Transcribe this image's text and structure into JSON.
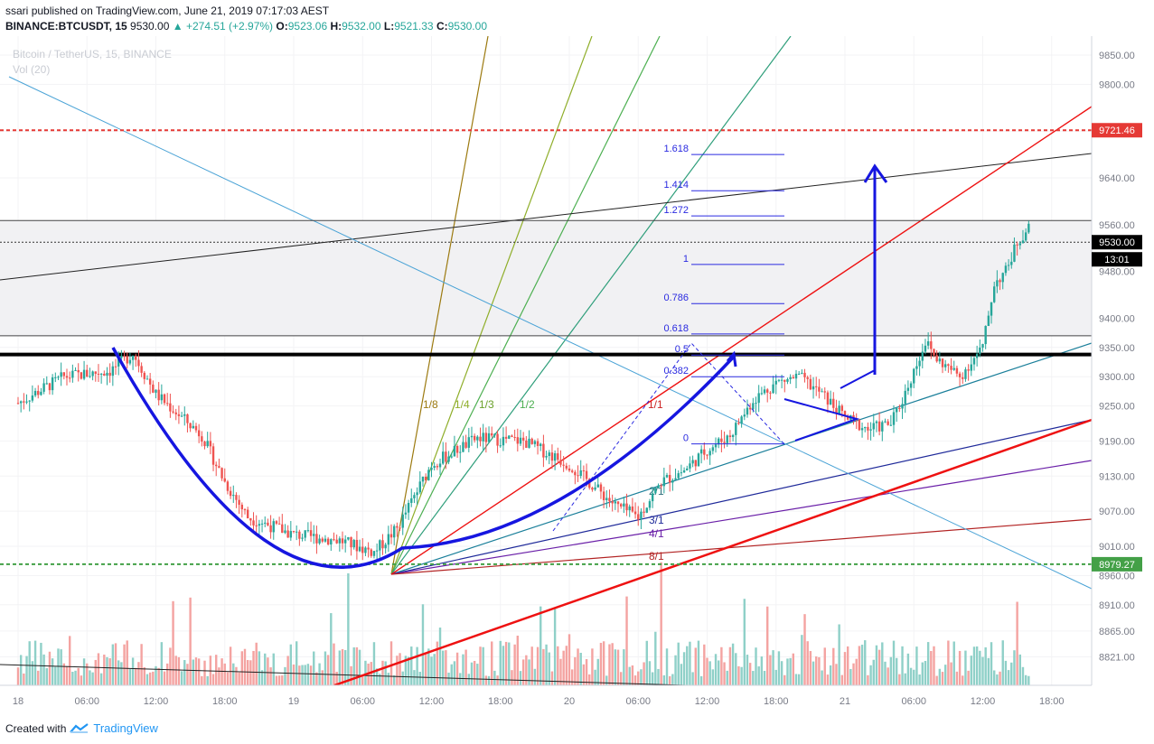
{
  "header": {
    "publisher": "ssari",
    "published_text": "published on TradingView.com, June 21, 2019 07:17:03 AEST",
    "symbol": "BINANCE:BTCUSDT, 15",
    "last": "9530.00",
    "change": "▲ +274.51 (+2.97%)",
    "o_label": "O:",
    "o_val": "9523.06",
    "h_label": "H:",
    "h_val": "9532.00",
    "l_label": "L:",
    "l_val": "9521.33",
    "c_label": "C:",
    "c_val": "9530.00"
  },
  "legend": {
    "title": "Bitcoin / TetherUS, 15, BINANCE",
    "vol": "Vol (20)"
  },
  "footer": {
    "created_with": "Created with",
    "brand": "TradingView"
  },
  "colors": {
    "up": "#26a69a",
    "down": "#ef5350",
    "vol_up": "#8fd0c8",
    "vol_down": "#f4a3a1",
    "blue_drawing": "#1616e0",
    "red_drawing": "#ee1111",
    "fib": "#2a2ae0"
  },
  "chart_data": {
    "type": "candlestick",
    "symbol": "BTCUSDT",
    "exchange": "BINANCE",
    "interval": "15",
    "ylim": [
      8790,
      9870
    ],
    "y_ticks": [
      9850.0,
      9800.0,
      9720.0,
      9640.0,
      9560.0,
      9480.0,
      9400.0,
      9350.0,
      9300.0,
      9250.0,
      9190.0,
      9130.0,
      9070.0,
      9010.0,
      8960.0,
      8910.0,
      8865.0,
      8821.0
    ],
    "x_ticks": [
      "18",
      "06:00",
      "12:00",
      "18:00",
      "19",
      "06:00",
      "12:00",
      "18:00",
      "20",
      "06:00",
      "12:00",
      "18:00",
      "21",
      "06:00",
      "12:00",
      "18:00"
    ],
    "price_labels": [
      {
        "value": "9721.46",
        "color": "#e53935"
      },
      {
        "value": "9530.00",
        "color": "#000000"
      },
      {
        "value": "13:01",
        "color": "#000000"
      },
      {
        "value": "8979.27",
        "color": "#43a047"
      }
    ],
    "horizontal_levels": [
      {
        "price": 9721.46,
        "style": "dashed",
        "color": "#e53935"
      },
      {
        "price": 8979.27,
        "style": "dashed",
        "color": "#43a047"
      },
      {
        "price": 9530.0,
        "style": "dotted",
        "color": "#333333"
      },
      {
        "price": 9567,
        "style": "solid",
        "color": "#444444"
      },
      {
        "price": 9370,
        "style": "solid",
        "color": "#444444"
      },
      {
        "price": 9338,
        "style": "bold",
        "color": "#000000"
      }
    ],
    "fib_levels": [
      {
        "label": "1.618",
        "price": 9680
      },
      {
        "label": "1.414",
        "price": 9618
      },
      {
        "label": "1.272",
        "price": 9575
      },
      {
        "label": "1",
        "price": 9492
      },
      {
        "label": "0.786",
        "price": 9425
      },
      {
        "label": "0.618",
        "price": 9373
      },
      {
        "label": "0.5",
        "price": 9337
      },
      {
        "label": "0.382",
        "price": 9300
      },
      {
        "label": "0",
        "price": 9185
      }
    ],
    "fan_labels": [
      "1/8",
      "1/4",
      "1/3",
      "1/2",
      "1/1",
      "2/1",
      "3/1",
      "4/1",
      "8/1"
    ]
  }
}
